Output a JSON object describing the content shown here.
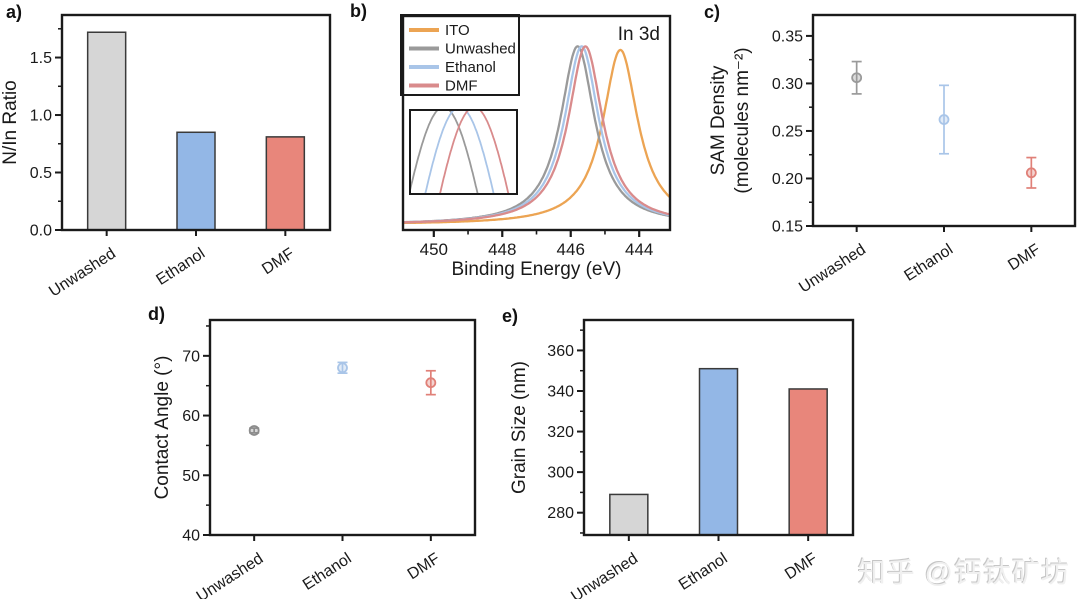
{
  "figure": {
    "background": "#ffffff"
  },
  "panels": [
    {
      "letter": "a)"
    },
    {
      "letter": "b)"
    },
    {
      "letter": "c)"
    },
    {
      "letter": "d)"
    },
    {
      "letter": "e)"
    }
  ],
  "watermark": {
    "text": "知乎 @钙钛矿坊",
    "color": "#d9d9d9"
  },
  "chart_data": [
    {
      "id": "a",
      "type": "bar",
      "ylabel_lines": [
        "N/In Ratio"
      ],
      "categories": [
        "Unwashed",
        "Ethanol",
        "DMF"
      ],
      "values": [
        1.72,
        0.85,
        0.81
      ],
      "bar_colors": [
        "#d6d6d6",
        "#93b7e6",
        "#e8867b"
      ],
      "bar_edge": "#3a3a3a",
      "ylim": [
        0,
        1.87
      ],
      "yticks": [
        0,
        0.5,
        1.0,
        1.5
      ],
      "minor_yticks": [
        0.25,
        0.75,
        1.25,
        1.75
      ],
      "ytick_decimals": 1,
      "grid": false,
      "legend": "none"
    },
    {
      "id": "b",
      "type": "line",
      "xlabel": "Binding Energy (eV)",
      "annotation": "In 3d",
      "x_axis_reversed": true,
      "xlim": [
        450.9,
        443.1
      ],
      "xticks": [
        450,
        448,
        446,
        444
      ],
      "minor_xticks": [
        449,
        447,
        445
      ],
      "ylim": [
        0,
        1.2
      ],
      "baseline": 0.03,
      "series": [
        {
          "name": "ITO",
          "color": "#eca453",
          "peak_center": 444.55,
          "peak_fwhm": 1.25,
          "amplitude": 0.98
        },
        {
          "name": "Unwashed",
          "color": "#9a9a9a",
          "peak_center": 445.8,
          "peak_fwhm": 1.22,
          "amplitude": 1.0
        },
        {
          "name": "Ethanol",
          "color": "#a9c5e8",
          "peak_center": 445.68,
          "peak_fwhm": 1.22,
          "amplitude": 1.0
        },
        {
          "name": "DMF",
          "color": "#d98b8c",
          "peak_center": 445.57,
          "peak_fwhm": 1.22,
          "amplitude": 1.0
        }
      ],
      "legend_position": "top-left",
      "inset": {
        "xlim": [
          446.05,
          445.25
        ],
        "ylim": [
          0.88,
          1.025
        ]
      }
    },
    {
      "id": "c",
      "type": "scatter",
      "ylabel_lines": [
        "SAM Density",
        "(molecules nm⁻²)"
      ],
      "categories": [
        "Unwashed",
        "Ethanol",
        "DMF"
      ],
      "values": [
        0.306,
        0.262,
        0.206
      ],
      "errors": [
        0.017,
        0.036,
        0.016
      ],
      "colors": [
        "#9a9a9a",
        "#a9c5e8",
        "#e08078"
      ],
      "ylim": [
        0.15,
        0.372
      ],
      "yticks": [
        0.15,
        0.2,
        0.25,
        0.3,
        0.35
      ],
      "minor_yticks": [
        0.175,
        0.225,
        0.275,
        0.325
      ],
      "ytick_decimals": 2
    },
    {
      "id": "d",
      "type": "scatter",
      "ylabel_lines": [
        "Contact Angle (°)"
      ],
      "categories": [
        "Unwashed",
        "Ethanol",
        "DMF"
      ],
      "values": [
        57.5,
        68.0,
        65.5
      ],
      "errors": [
        0.4,
        0.9,
        2.0
      ],
      "colors": [
        "#8c8c8c",
        "#a9c5e8",
        "#e08078"
      ],
      "ylim": [
        40,
        76
      ],
      "yticks": [
        40,
        50,
        60,
        70
      ],
      "minor_yticks": [
        45,
        55,
        65,
        75
      ],
      "ytick_decimals": 0
    },
    {
      "id": "e",
      "type": "bar",
      "ylabel_lines": [
        "Grain Size (nm)"
      ],
      "categories": [
        "Unwashed",
        "Ethanol",
        "DMF"
      ],
      "values": [
        289,
        351,
        341
      ],
      "bar_colors": [
        "#d6d6d6",
        "#93b7e6",
        "#e8867b"
      ],
      "bar_edge": "#3a3a3a",
      "ylim": [
        269,
        375
      ],
      "yticks": [
        280,
        300,
        320,
        340,
        360
      ],
      "minor_yticks": [
        270,
        290,
        310,
        330,
        350,
        370
      ],
      "ytick_decimals": 0
    }
  ]
}
